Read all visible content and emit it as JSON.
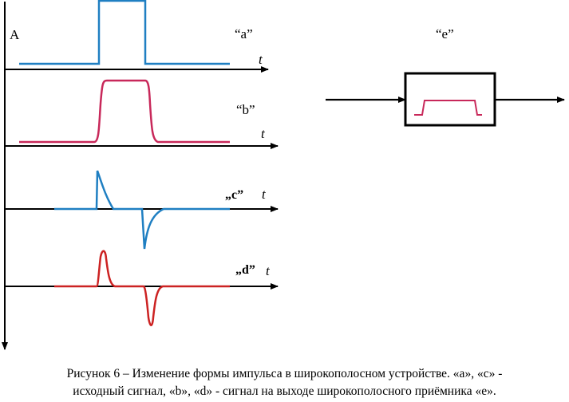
{
  "colors": {
    "axis": "#000000",
    "signal_blue": "#1f7fc2",
    "signal_pink": "#c8285a",
    "signal_red": "#cc2222"
  },
  "labels": {
    "amplitude": "A",
    "time": "t",
    "label_a": "“a”",
    "label_b": "“b”",
    "label_c": "„c”",
    "label_d": "„d”",
    "label_e": "“e”"
  },
  "caption": {
    "line1": "Рисунок 6 – Изменение формы импульса в широкополосном устройстве. «а», «с» -",
    "line2": "исходный сигнал, «b», «d» - сигнал на выходе широкополосного приёмника «е»."
  }
}
